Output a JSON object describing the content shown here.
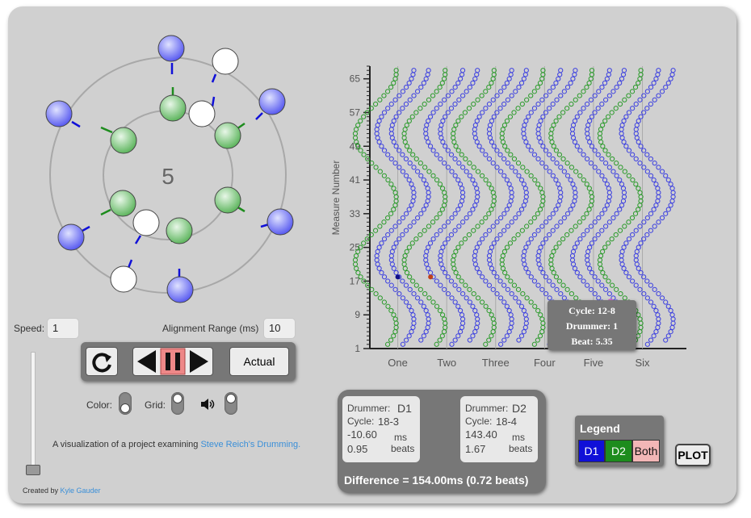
{
  "visual": {
    "current_step": "5",
    "colors": {
      "d1": "#3b3fe0",
      "d2": "#2a9a2a",
      "both": "#f2b6b6",
      "panel": "#d0d0d0",
      "link": "#3a8fd8"
    }
  },
  "controls": {
    "speed_label": "Speed:",
    "speed_value": "1",
    "alignment_label": "Alignment Range (ms)",
    "alignment_value": "10",
    "actual_label": "Actual",
    "color_label": "Color:",
    "grid_label": "Grid:",
    "sound_icon": "speaker-icon",
    "speed_slider_value": 0.0
  },
  "description": {
    "prefix": "A visualization of a project examining ",
    "link_text": "Steve Reich's Drumming.",
    "credit_prefix": "Created by ",
    "credit_link": "Kyle Gauder"
  },
  "tooltip": {
    "cycle": "Cycle: 12-8",
    "drummer": "Drummer: 1",
    "beat": "Beat: 5.35"
  },
  "chart_data": {
    "type": "scatter",
    "ylabel": "Measure Number",
    "y_ticks": [
      "1",
      "9",
      "17",
      "25",
      "33",
      "41",
      "49",
      "57",
      "65"
    ],
    "x_tick_labels": [
      "One",
      "Two",
      "Three",
      "Four",
      "Five",
      "Six"
    ],
    "ylim": [
      1,
      68
    ],
    "xlim": [
      0,
      6.8
    ],
    "grid": "vertical lines at beats",
    "series": [
      {
        "color": "#3b3fe0"
      },
      {
        "color": "#2a9a2a"
      }
    ]
  },
  "info_panel": {
    "d1": {
      "drummer_label": "Drummer:",
      "drummer": "D1",
      "cycle_label": "Cycle:",
      "cycle": "18-3",
      "ms": "-10.60",
      "ms_unit": "ms",
      "beats": "0.95",
      "beats_unit": "beats"
    },
    "d2": {
      "drummer_label": "Drummer:",
      "drummer": "D2",
      "cycle_label": "Cycle:",
      "cycle": "18-4",
      "ms": "143.40",
      "ms_unit": "ms",
      "beats": "1.67",
      "beats_unit": "beats"
    },
    "difference": "Difference = 154.00ms (0.72 beats)"
  },
  "legend": {
    "title": "Legend",
    "d1": "D1",
    "d2": "D2",
    "both": "Both"
  },
  "plot_button": "PLOT"
}
